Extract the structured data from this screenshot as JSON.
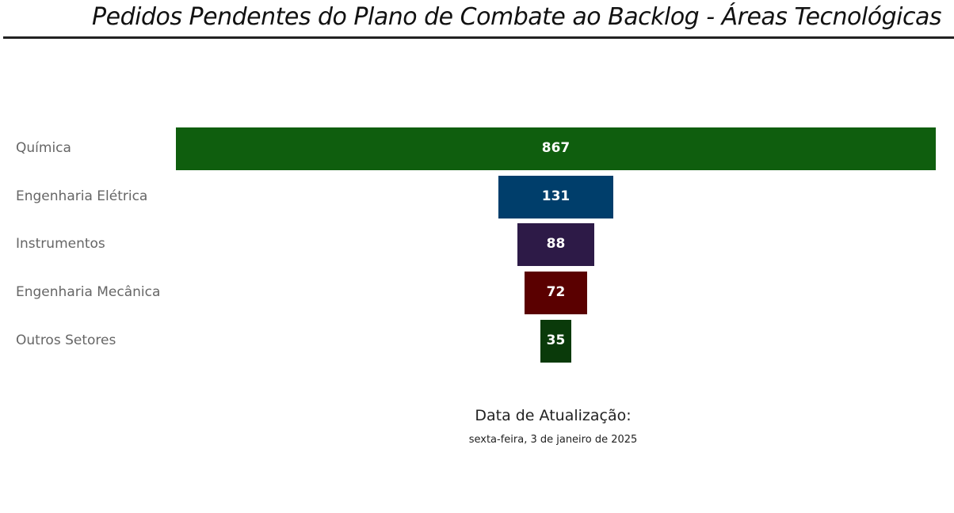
{
  "header": {
    "title": "Pedidos Pendentes do Plano de Combate ao Backlog - Áreas Tecnológicas"
  },
  "chart_data": {
    "type": "funnel",
    "categories": [
      "Química",
      "Engenharia Elétrica",
      "Instrumentos",
      "Engenharia Mecânica",
      "Outros Setores"
    ],
    "values": [
      867,
      131,
      88,
      72,
      35
    ],
    "colors": [
      "#0f5e0e",
      "#003e6b",
      "#2d1a47",
      "#5a0000",
      "#0a3a0a"
    ],
    "data_labels": [
      "867",
      "131",
      "88",
      "72",
      "35"
    ]
  },
  "footer": {
    "update_label": "Data de Atualização:",
    "update_date": "sexta-feira, 3 de janeiro de 2025"
  }
}
